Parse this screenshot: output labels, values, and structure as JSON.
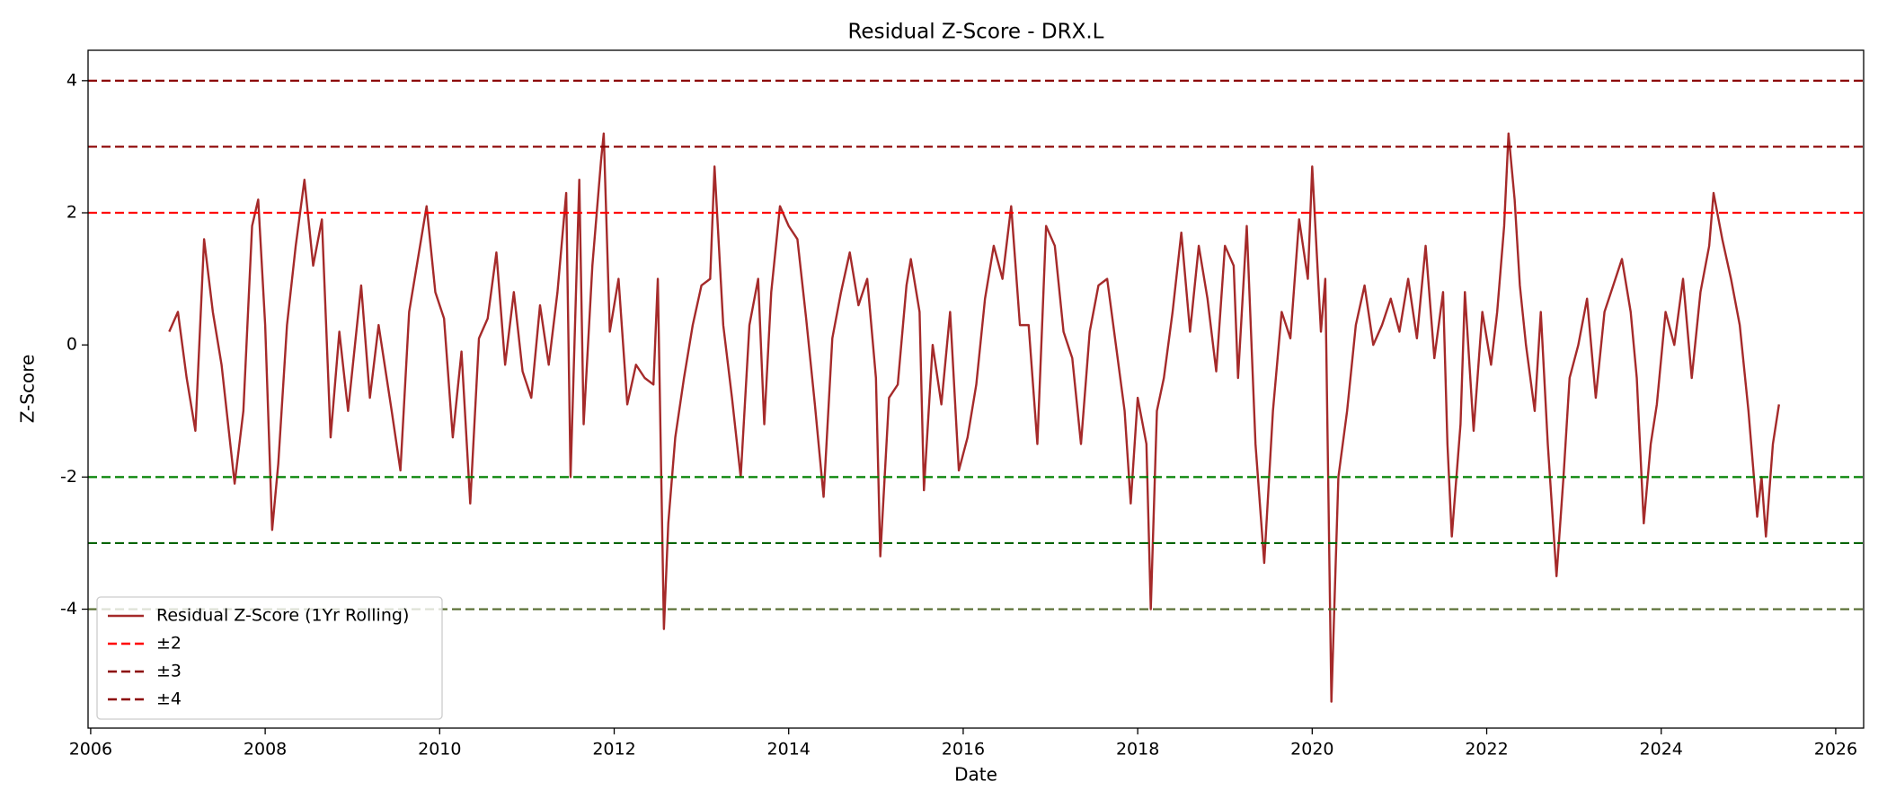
{
  "chart_data": {
    "type": "line",
    "title": "Residual Z-Score - DRX.L",
    "x_label": "Date",
    "y_label": "Z-Score",
    "xlim": [
      2005.97,
      2026.32
    ],
    "ylim": [
      -5.8,
      4.46
    ],
    "xticks": [
      2006,
      2008,
      2010,
      2012,
      2014,
      2016,
      2018,
      2020,
      2022,
      2024,
      2026
    ],
    "yticks": [
      -4,
      -2,
      0,
      2,
      4
    ],
    "legend_position": "lower left",
    "x": [
      2006.9,
      2007.0,
      2007.1,
      2007.2,
      2007.3,
      2007.4,
      2007.5,
      2007.6,
      2007.65,
      2007.75,
      2007.85,
      2007.92,
      2008.0,
      2008.08,
      2008.15,
      2008.25,
      2008.35,
      2008.45,
      2008.55,
      2008.65,
      2008.75,
      2008.85,
      2008.95,
      2009.1,
      2009.2,
      2009.3,
      2009.45,
      2009.55,
      2009.65,
      2009.75,
      2009.85,
      2009.95,
      2010.05,
      2010.15,
      2010.25,
      2010.35,
      2010.45,
      2010.55,
      2010.65,
      2010.75,
      2010.85,
      2010.95,
      2011.05,
      2011.15,
      2011.25,
      2011.35,
      2011.45,
      2011.5,
      2011.6,
      2011.65,
      2011.75,
      2011.85,
      2011.88,
      2011.95,
      2012.05,
      2012.15,
      2012.25,
      2012.35,
      2012.45,
      2012.5,
      2012.57,
      2012.62,
      2012.7,
      2012.8,
      2012.9,
      2013.0,
      2013.1,
      2013.15,
      2013.25,
      2013.35,
      2013.45,
      2013.55,
      2013.65,
      2013.72,
      2013.8,
      2013.9,
      2014.0,
      2014.1,
      2014.2,
      2014.3,
      2014.4,
      2014.5,
      2014.6,
      2014.7,
      2014.8,
      2014.9,
      2015.0,
      2015.05,
      2015.15,
      2015.25,
      2015.35,
      2015.4,
      2015.5,
      2015.55,
      2015.65,
      2015.75,
      2015.85,
      2015.95,
      2016.05,
      2016.15,
      2016.25,
      2016.35,
      2016.45,
      2016.55,
      2016.65,
      2016.75,
      2016.85,
      2016.95,
      2017.05,
      2017.15,
      2017.25,
      2017.35,
      2017.45,
      2017.55,
      2017.65,
      2017.75,
      2017.85,
      2017.92,
      2018.0,
      2018.1,
      2018.15,
      2018.22,
      2018.3,
      2018.4,
      2018.5,
      2018.6,
      2018.7,
      2018.8,
      2018.9,
      2019.0,
      2019.1,
      2019.15,
      2019.25,
      2019.35,
      2019.45,
      2019.55,
      2019.65,
      2019.75,
      2019.85,
      2019.95,
      2020.0,
      2020.1,
      2020.15,
      2020.22,
      2020.3,
      2020.4,
      2020.5,
      2020.6,
      2020.7,
      2020.8,
      2020.9,
      2021.0,
      2021.1,
      2021.2,
      2021.3,
      2021.4,
      2021.5,
      2021.55,
      2021.6,
      2021.7,
      2021.75,
      2021.85,
      2021.95,
      2022.05,
      2022.12,
      2022.2,
      2022.25,
      2022.32,
      2022.38,
      2022.45,
      2022.55,
      2022.62,
      2022.7,
      2022.8,
      2022.88,
      2022.95,
      2023.05,
      2023.15,
      2023.25,
      2023.35,
      2023.45,
      2023.55,
      2023.65,
      2023.72,
      2023.8,
      2023.88,
      2023.95,
      2024.05,
      2024.15,
      2024.25,
      2024.35,
      2024.45,
      2024.55,
      2024.6,
      2024.7,
      2024.8,
      2024.9,
      2025.0,
      2025.1,
      2025.15,
      2025.2,
      2025.28,
      2025.35
    ],
    "series": [
      {
        "name": "Residual Z-Score (1Yr Rolling)",
        "color": "#a52a2a",
        "values": [
          0.2,
          0.5,
          -0.5,
          -1.3,
          1.6,
          0.5,
          -0.3,
          -1.5,
          -2.1,
          -1.0,
          1.8,
          2.2,
          0.3,
          -2.8,
          -1.8,
          0.3,
          1.5,
          2.5,
          1.2,
          1.9,
          -1.4,
          0.2,
          -1.0,
          0.9,
          -0.8,
          0.3,
          -1.0,
          -1.9,
          0.5,
          1.3,
          2.1,
          0.8,
          0.4,
          -1.4,
          -0.1,
          -2.4,
          0.1,
          0.4,
          1.4,
          -0.3,
          0.8,
          -0.4,
          -0.8,
          0.6,
          -0.3,
          0.8,
          2.3,
          -2.0,
          2.5,
          -1.2,
          1.2,
          2.8,
          3.2,
          0.2,
          1.0,
          -0.9,
          -0.3,
          -0.5,
          -0.6,
          1.0,
          -4.3,
          -2.7,
          -1.4,
          -0.5,
          0.3,
          0.9,
          1.0,
          2.7,
          0.3,
          -0.8,
          -2.0,
          0.3,
          1.0,
          -1.2,
          0.8,
          2.1,
          1.8,
          1.6,
          0.4,
          -0.9,
          -2.3,
          0.1,
          0.8,
          1.4,
          0.6,
          1.0,
          -0.5,
          -3.2,
          -0.8,
          -0.6,
          0.9,
          1.3,
          0.5,
          -2.2,
          0.0,
          -0.9,
          0.5,
          -1.9,
          -1.4,
          -0.6,
          0.7,
          1.5,
          1.0,
          2.1,
          0.3,
          0.3,
          -1.5,
          1.8,
          1.5,
          0.2,
          -0.2,
          -1.5,
          0.2,
          0.9,
          1.0,
          0.0,
          -1.0,
          -2.4,
          -0.8,
          -1.5,
          -4.0,
          -1.0,
          -0.5,
          0.5,
          1.7,
          0.2,
          1.5,
          0.7,
          -0.4,
          1.5,
          1.2,
          -0.5,
          1.8,
          -1.5,
          -3.3,
          -1.0,
          0.5,
          0.1,
          1.9,
          1.0,
          2.7,
          0.2,
          1.0,
          -5.4,
          -2.0,
          -1.0,
          0.3,
          0.9,
          0.0,
          0.3,
          0.7,
          0.2,
          1.0,
          0.1,
          1.5,
          -0.2,
          0.8,
          -1.5,
          -2.9,
          -1.2,
          0.8,
          -1.3,
          0.5,
          -0.3,
          0.5,
          1.8,
          3.2,
          2.2,
          0.9,
          0.0,
          -1.0,
          0.5,
          -1.5,
          -3.5,
          -2.0,
          -0.5,
          0.0,
          0.7,
          -0.8,
          0.5,
          0.9,
          1.3,
          0.5,
          -0.5,
          -2.7,
          -1.5,
          -0.9,
          0.5,
          0.0,
          1.0,
          -0.5,
          0.8,
          1.5,
          2.3,
          1.6,
          1.0,
          0.3,
          -1.0,
          -2.6,
          -2.0,
          -2.9,
          -1.5,
          -0.9
        ]
      }
    ],
    "thresholds": [
      {
        "name": "±2",
        "upper": {
          "y": 2,
          "color": "#ff0000"
        },
        "lower": {
          "y": -2,
          "color": "#008000"
        }
      },
      {
        "name": "±3",
        "upper": {
          "y": 3,
          "color": "#8b0000"
        },
        "lower": {
          "y": -3,
          "color": "#006400"
        }
      },
      {
        "name": "±4",
        "upper": {
          "y": 4,
          "color": "#8b0000"
        },
        "lower": {
          "y": -4,
          "color": "#556b2f"
        }
      }
    ]
  }
}
